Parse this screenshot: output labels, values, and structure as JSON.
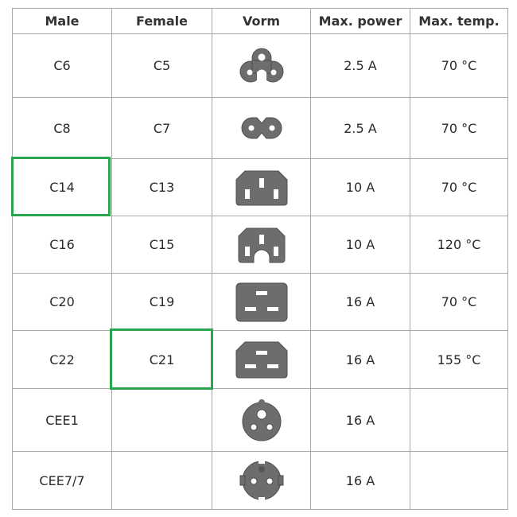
{
  "table": {
    "headers": [
      "Male",
      "Female",
      "Vorm",
      "Max. power",
      "Max. temp."
    ],
    "rows": [
      {
        "male": "C6",
        "female": "C5",
        "icon": "c5-cloverleaf-connector-icon",
        "power": "2.5 A",
        "temp": "70 °C"
      },
      {
        "male": "C8",
        "female": "C7",
        "icon": "c7-figure-eight-connector-icon",
        "power": "2.5 A",
        "temp": "70 °C"
      },
      {
        "male": "C14",
        "female": "C13",
        "icon": "c13-connector-icon",
        "power": "10 A",
        "temp": "70 °C",
        "highlight": "male"
      },
      {
        "male": "C16",
        "female": "C15",
        "icon": "c15-connector-icon",
        "power": "10 A",
        "temp": "120 °C"
      },
      {
        "male": "C20",
        "female": "C19",
        "icon": "c19-connector-icon",
        "power": "16 A",
        "temp": "70 °C"
      },
      {
        "male": "C22",
        "female": "C21",
        "icon": "c21-connector-icon",
        "power": "16 A",
        "temp": "155 °C",
        "highlight": "female"
      },
      {
        "male": "CEE1",
        "female": "",
        "icon": "cee1-plug-icon",
        "power": "16 A",
        "temp": ""
      },
      {
        "male": "CEE7/7",
        "female": "",
        "icon": "cee7-schuko-plug-icon",
        "power": "16 A",
        "temp": ""
      }
    ]
  },
  "colors": {
    "highlight": "#2aa54f",
    "icon_fill": "#6d6d6d",
    "grid": "#a8a8a8"
  }
}
